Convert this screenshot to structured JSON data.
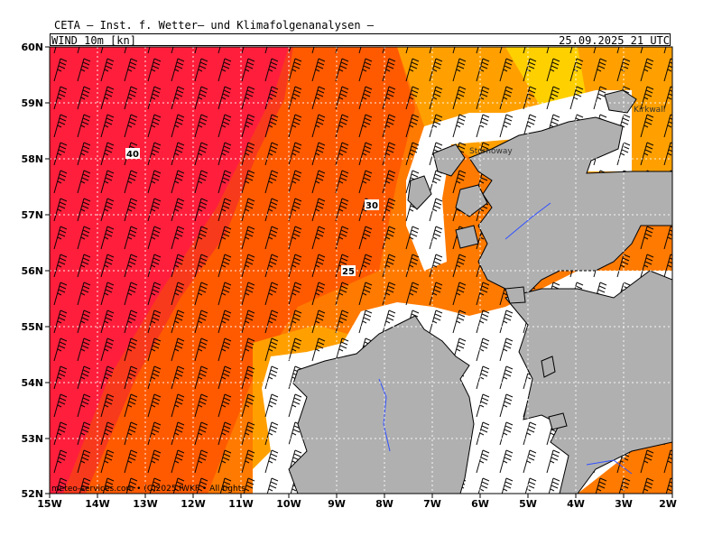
{
  "header": {
    "title": "CETA — Inst. f. Wetter— und Klimafolgenanalysen —",
    "parameter": "WIND 10m [kn]",
    "valid_time": "25.09.2025 21 UTC"
  },
  "map": {
    "lat_labels": [
      "60N",
      "59N",
      "58N",
      "57N",
      "56N",
      "55N",
      "54N",
      "53N",
      "52N"
    ],
    "lon_labels": [
      "15W",
      "14W",
      "13W",
      "12W",
      "11W",
      "10W",
      "9W",
      "8W",
      "7W",
      "6W",
      "5W",
      "4W",
      "3W",
      "2W"
    ],
    "isotach_labels": [
      "40",
      "30",
      "25"
    ],
    "place_labels": [
      "Stornoway",
      "Kirkwall"
    ],
    "copyright": "meteo-services.com • (C)2025 IWKF • All rights",
    "colors": {
      "wind_40_plus": "#ff1f3c",
      "wind_35_40": "#f83a1c",
      "wind_30_35": "#ff5a00",
      "wind_25_30": "#ff7a00",
      "wind_20_25": "#ffa000",
      "wind_15_20": "#ffd000",
      "wind_10_15": "#ffff80",
      "wind_5_10": "#c8ffc8",
      "land": "#b0b0b0",
      "coast": "#000000",
      "rivers": "#3050ff"
    }
  }
}
